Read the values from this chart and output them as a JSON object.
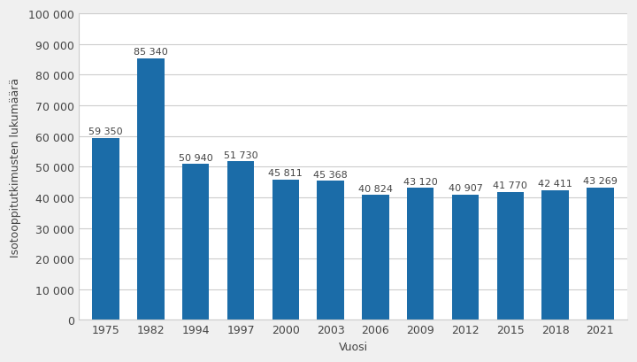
{
  "categories": [
    "1975",
    "1982",
    "1994",
    "1997",
    "2000",
    "2003",
    "2006",
    "2009",
    "2012",
    "2015",
    "2018",
    "2021"
  ],
  "values": [
    59350,
    85340,
    50940,
    51730,
    45811,
    45368,
    40824,
    43120,
    40907,
    41770,
    42411,
    43269
  ],
  "labels": [
    "59 350",
    "85 340",
    "50 940",
    "51 730",
    "45 811",
    "45 368",
    "40 824",
    "43 120",
    "40 907",
    "41 770",
    "42 411",
    "43 269"
  ],
  "bar_color": "#1B6CA8",
  "background_color": "#f0f0f0",
  "plot_bg_color": "#ffffff",
  "ylabel": "Isotooppitutkimusten lukumäärä",
  "xlabel": "Vuosi",
  "ylim": [
    0,
    100000
  ],
  "yticks": [
    0,
    10000,
    20000,
    30000,
    40000,
    50000,
    60000,
    70000,
    80000,
    90000,
    100000
  ],
  "ytick_labels": [
    "0",
    "10 000",
    "20 000",
    "30 000",
    "40 000",
    "50 000",
    "60 000",
    "70 000",
    "80 000",
    "90 000",
    "100 000"
  ],
  "title_fontsize": 10,
  "label_fontsize": 9,
  "tick_fontsize": 9,
  "annotation_fontsize": 8
}
